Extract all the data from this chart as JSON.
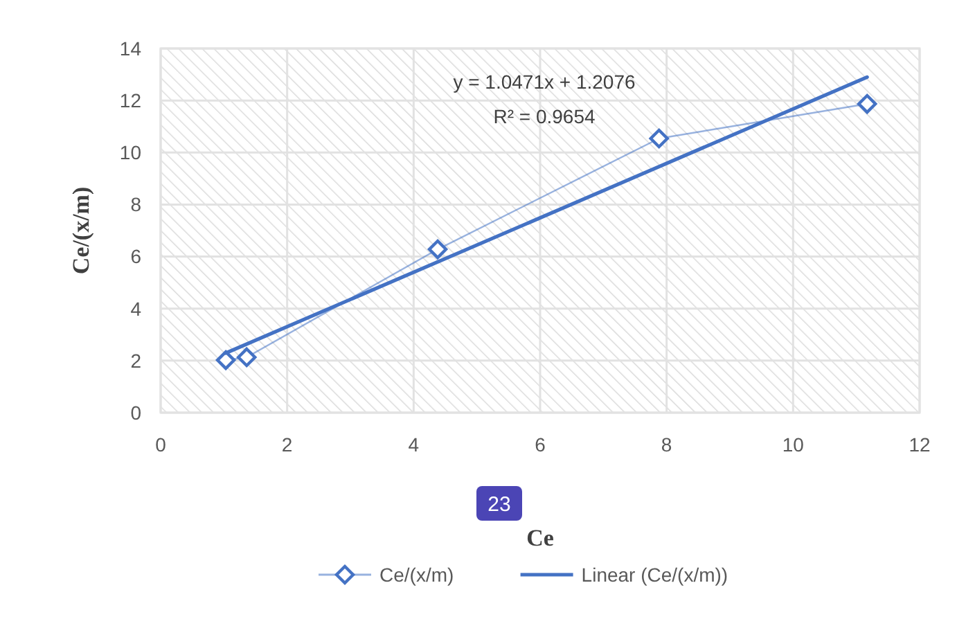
{
  "chart_data": {
    "type": "line",
    "xlabel": "Ce",
    "ylabel": "Ce/(x/m)",
    "xlim": [
      0,
      12
    ],
    "xticks": [
      0,
      2,
      4,
      6,
      8,
      10,
      12
    ],
    "ylim": [
      0,
      14
    ],
    "yticks": [
      0,
      2,
      4,
      6,
      8,
      10,
      12,
      14
    ],
    "grid": true,
    "legend": "bottom",
    "series": [
      {
        "name": "Ce/(x/m)",
        "type": "line",
        "color": "#4472c4",
        "marker": "diamond",
        "x": [
          1.03,
          1.36,
          4.38,
          7.88,
          11.17
        ],
        "values": [
          2.02,
          2.13,
          6.28,
          10.54,
          11.87
        ]
      },
      {
        "name": "Linear (Ce/(x/m))",
        "type": "line",
        "color": "#4472c4",
        "marker": "none",
        "x": [
          1.03,
          11.17
        ],
        "values": [
          2.29,
          12.9
        ]
      }
    ],
    "annotations": [
      "y = 1.0471x + 1.2076",
      "R² = 0.9654",
      "23"
    ]
  }
}
